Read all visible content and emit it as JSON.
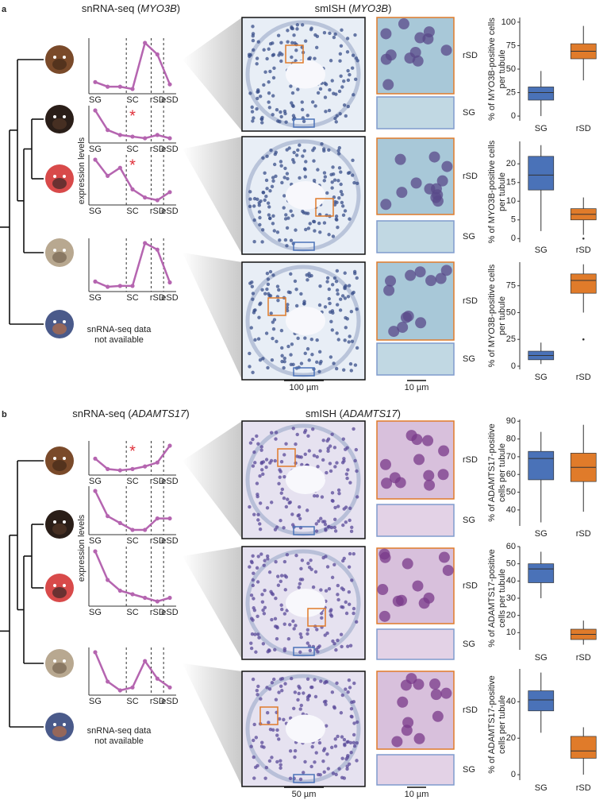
{
  "panels": [
    {
      "label": "a",
      "snrna_header": {
        "prefix": "snRNA-seq (",
        "gene": "MYO3B",
        "suffix": ")"
      },
      "smish_header": {
        "prefix": "smISH (",
        "gene": "MYO3B",
        "suffix": ")"
      },
      "expression_axis_label": "expression levels",
      "not_available": [
        "snRNA-seq data",
        "not available"
      ],
      "line_plots": [
        {
          "type": "line",
          "color": "#b565b0",
          "categories": [
            "SG",
            null,
            null,
            "SC",
            null,
            "rSD",
            "eSD"
          ],
          "values": [
            0.15,
            0.05,
            0.05,
            0.0,
            1.0,
            0.75,
            0.1
          ]
        },
        {
          "type": "line",
          "color": "#b565b0",
          "annotation": "*",
          "categories": [
            "SG",
            null,
            null,
            "SC",
            null,
            "rSD",
            "eSD"
          ],
          "values": [
            1.0,
            0.4,
            0.25,
            0.2,
            0.15,
            0.25,
            0.15
          ]
        },
        {
          "type": "line",
          "color": "#b565b0",
          "annotation": "*",
          "categories": [
            "SG",
            null,
            null,
            "SC",
            null,
            "rSD",
            "eSD"
          ],
          "values": [
            0.75,
            0.45,
            0.6,
            0.2,
            0.05,
            0.0,
            0.15
          ]
        },
        {
          "type": "line",
          "color": "#b565b0",
          "categories": [
            "SG",
            null,
            null,
            "SC",
            null,
            "rSD",
            "eSD"
          ],
          "values": [
            0.12,
            0.0,
            0.02,
            0.02,
            1.0,
            0.85,
            0.1
          ]
        }
      ],
      "image_rows": [
        {
          "zoom_labels": [
            "rSD",
            "SG"
          ]
        },
        {
          "zoom_labels": [
            "rSD",
            "SG"
          ]
        },
        {
          "zoom_labels": [
            "rSD",
            "SG"
          ]
        }
      ],
      "scale_bars": [
        "100 µm",
        "10 µm"
      ],
      "box_plots": [
        {
          "type": "box",
          "ylabel": [
            "% of MYO3B-positive cells",
            "per tubule"
          ],
          "categories": [
            "SG",
            "rSD"
          ],
          "colors": [
            "#4a72b8",
            "#e07b2a"
          ],
          "ylim": [
            -5,
            105
          ],
          "yticks": [
            0,
            25,
            50,
            75,
            100
          ],
          "boxes": [
            {
              "min": 0,
              "q1": 17,
              "median": 25,
              "q3": 31,
              "max": 48,
              "outliers": []
            },
            {
              "min": 38,
              "q1": 61,
              "median": 69,
              "q3": 77,
              "max": 96,
              "outliers": []
            }
          ]
        },
        {
          "type": "box",
          "ylabel": [
            "% of MYO3B-positive cells",
            "per tubule"
          ],
          "categories": [
            "SG",
            "rSD"
          ],
          "colors": [
            "#4a72b8",
            "#e07b2a"
          ],
          "ylim": [
            -1,
            26
          ],
          "yticks": [
            0,
            5,
            10,
            15,
            20
          ],
          "boxes": [
            {
              "min": 2,
              "q1": 13,
              "median": 17,
              "q3": 22,
              "max": 25,
              "outliers": []
            },
            {
              "min": 1,
              "q1": 5,
              "median": 6.5,
              "q3": 8,
              "max": 11,
              "outliers": [
                0
              ]
            }
          ]
        },
        {
          "type": "box",
          "ylabel": [
            "% of MYO3B-positive cells",
            "per tubule"
          ],
          "categories": [
            "SG",
            "rSD"
          ],
          "colors": [
            "#4a72b8",
            "#e07b2a"
          ],
          "ylim": [
            -3,
            97
          ],
          "yticks": [
            0,
            25,
            50,
            75
          ],
          "boxes": [
            {
              "min": 2,
              "q1": 6,
              "median": 10,
              "q3": 14,
              "max": 22,
              "outliers": []
            },
            {
              "min": 50,
              "q1": 68,
              "median": 80,
              "q3": 86,
              "max": 95,
              "outliers": [
                25
              ]
            }
          ]
        }
      ]
    },
    {
      "label": "b",
      "snrna_header": {
        "prefix": "snRNA-seq (",
        "gene": "ADAMTS17",
        "suffix": ")"
      },
      "smish_header": {
        "prefix": "smISH (",
        "gene": "ADAMTS17",
        "suffix": ")"
      },
      "expression_axis_label": "expression levels",
      "not_available": [
        "snRNA-seq data",
        "not available"
      ],
      "line_plots": [
        {
          "type": "line",
          "color": "#b565b0",
          "annotation": "*",
          "categories": [
            "SG",
            null,
            null,
            "SC",
            null,
            "rSD",
            "eSD"
          ],
          "values": [
            0.5,
            0.1,
            0.05,
            0.1,
            0.2,
            0.35,
            1.0
          ]
        },
        {
          "type": "line",
          "color": "#b565b0",
          "categories": [
            "SG",
            null,
            null,
            "SC",
            null,
            "rSD",
            "eSD"
          ],
          "values": [
            1.0,
            0.45,
            0.3,
            0.15,
            0.15,
            0.4,
            0.4
          ]
        },
        {
          "type": "line",
          "color": "#b565b0",
          "categories": [
            "SG",
            null,
            null,
            "SC",
            null,
            "rSD",
            "eSD"
          ],
          "values": [
            0.8,
            0.4,
            0.25,
            0.2,
            0.15,
            0.1,
            0.15
          ]
        },
        {
          "type": "line",
          "color": "#b565b0",
          "categories": [
            "SG",
            null,
            null,
            "SC",
            null,
            "rSD",
            "eSD"
          ],
          "values": [
            0.65,
            0.15,
            0.0,
            0.05,
            0.5,
            0.2,
            0.05
          ]
        }
      ],
      "image_rows": [
        {
          "zoom_labels": [
            "rSD",
            "SG"
          ]
        },
        {
          "zoom_labels": [
            "rSD",
            "SG"
          ]
        },
        {
          "zoom_labels": [
            "rSD",
            "SG"
          ]
        }
      ],
      "scale_bars": [
        "50 µm",
        "10 µm"
      ],
      "box_plots": [
        {
          "type": "box",
          "ylabel": [
            "% of ADAMTS17-positive",
            "cells per tubule"
          ],
          "categories": [
            "SG",
            "rSD"
          ],
          "colors": [
            "#4a72b8",
            "#e07b2a"
          ],
          "ylim": [
            31,
            91
          ],
          "yticks": [
            40,
            50,
            60,
            70,
            80,
            90
          ],
          "boxes": [
            {
              "min": 33,
              "q1": 57,
              "median": 69,
              "q3": 73,
              "max": 84,
              "outliers": []
            },
            {
              "min": 39,
              "q1": 56,
              "median": 64,
              "q3": 72,
              "max": 88,
              "outliers": []
            }
          ]
        },
        {
          "type": "box",
          "ylabel": [
            "% of ADAMTS17-positive",
            "cells per tubule"
          ],
          "categories": [
            "SG",
            "rSD"
          ],
          "colors": [
            "#4a72b8",
            "#e07b2a"
          ],
          "ylim": [
            0,
            60
          ],
          "yticks": [
            10,
            20,
            30,
            40,
            50,
            60
          ],
          "boxes": [
            {
              "min": 30,
              "q1": 39,
              "median": 47,
              "q3": 50,
              "max": 57,
              "outliers": []
            },
            {
              "min": 3,
              "q1": 6,
              "median": 9,
              "q3": 12,
              "max": 17,
              "outliers": []
            }
          ]
        },
        {
          "type": "box",
          "ylabel": [
            "% of ADAMTS17-positive",
            "cells per tubule"
          ],
          "categories": [
            "SG",
            "rSD"
          ],
          "colors": [
            "#4a72b8",
            "#e07b2a"
          ],
          "ylim": [
            -3,
            58
          ],
          "yticks": [
            0,
            20,
            40
          ],
          "boxes": [
            {
              "min": 23,
              "q1": 35,
              "median": 41,
              "q3": 46,
              "max": 56,
              "outliers": []
            },
            {
              "min": 0,
              "q1": 9,
              "median": 13,
              "q3": 21,
              "max": 26,
              "outliers": []
            }
          ]
        }
      ]
    }
  ]
}
